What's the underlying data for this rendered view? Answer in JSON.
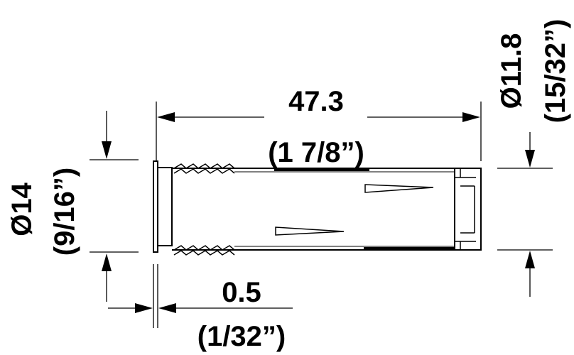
{
  "dimensions": {
    "length": {
      "metric": "47.3",
      "imperial": "(1 7/8”)"
    },
    "outer_diameter": {
      "metric": "Ø14",
      "imperial": "(9/16”)"
    },
    "inner_diameter": {
      "metric": "Ø11.8",
      "imperial": "(15/32”)"
    },
    "flange_thickness": {
      "metric": "0.5",
      "imperial": "(1/32”)"
    }
  },
  "colors": {
    "line": "#000000",
    "background": "#ffffff"
  }
}
